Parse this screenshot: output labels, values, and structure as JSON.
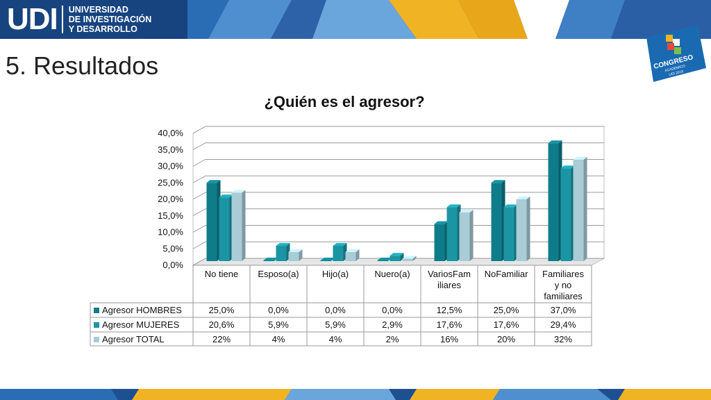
{
  "header": {
    "logo_mark": "UDI",
    "logo_line1": "UNIVERSIDAD",
    "logo_line2": "DE INVESTIGACIÓN",
    "logo_line3": "Y DESARROLLO",
    "badge_text": "CONGRESO",
    "badge_sub": "ACADEMICO",
    "badge_year": "UDI 2018"
  },
  "page_title": "5. Resultados",
  "colors": {
    "hombres": "#0f7c8a",
    "mujeres": "#1b95a3",
    "total": "#a9ccd6",
    "banner_blue": "#1d4f91",
    "banner_yellow": "#f0b323"
  },
  "chart_data": {
    "type": "bar",
    "title": "¿Quién es el agresor?",
    "categories": [
      "No tiene",
      "Esposo(a)",
      "Hijo(a)",
      "Nuero(a)",
      "VariosFamiliares",
      "NoFamiliar",
      "Familiares y no familiares"
    ],
    "category_lines": [
      [
        "No tiene"
      ],
      [
        "Esposo(a)"
      ],
      [
        "Hijo(a)"
      ],
      [
        "Nuero(a)"
      ],
      [
        "VariosFam",
        "iliares"
      ],
      [
        "NoFamiliar"
      ],
      [
        "Familiares",
        "y no",
        "familiares"
      ]
    ],
    "series": [
      {
        "name": "Agresor HOMBRES",
        "values": [
          25.0,
          0.0,
          0.0,
          0.0,
          12.5,
          25.0,
          37.0
        ],
        "labels": [
          "25,0%",
          "0,0%",
          "0,0%",
          "0,0%",
          "12,5%",
          "25,0%",
          "37,0%"
        ]
      },
      {
        "name": "Agresor MUJERES",
        "values": [
          20.6,
          5.9,
          5.9,
          2.9,
          17.6,
          17.6,
          29.4
        ],
        "labels": [
          "20,6%",
          "5,9%",
          "5,9%",
          "2,9%",
          "17,6%",
          "17,6%",
          "29,4%"
        ]
      },
      {
        "name": "Agresor TOTAL",
        "values": [
          22,
          4,
          4,
          2,
          16,
          20,
          32
        ],
        "labels": [
          "22%",
          "4%",
          "4%",
          "2%",
          "16%",
          "20%",
          "32%"
        ]
      }
    ],
    "ylim": [
      0,
      40
    ],
    "yticks": [
      "0,0%",
      "5,0%",
      "10,0%",
      "15,0%",
      "20,0%",
      "25,0%",
      "30,0%",
      "35,0%",
      "40,0%"
    ],
    "grid": true,
    "legend": "data-table"
  }
}
